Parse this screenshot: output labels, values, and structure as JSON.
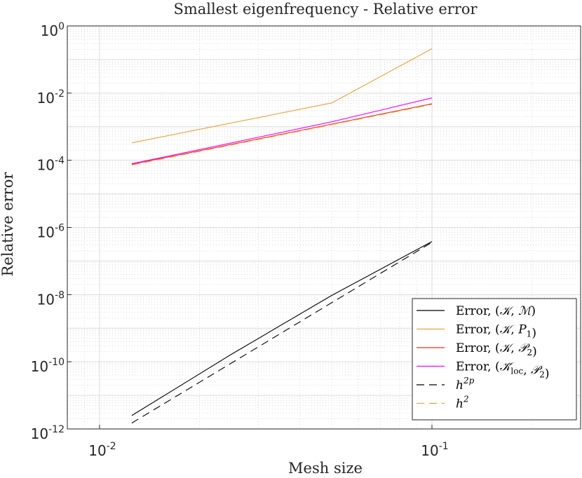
{
  "chart_data": {
    "type": "line",
    "title": "Smallest eigenfrequency - Relative error",
    "xlabel": "Mesh size",
    "ylabel": "Relative error",
    "xscale": "log",
    "yscale": "log",
    "xlim": [
      0.008,
      0.28
    ],
    "ylim": [
      1e-12,
      1
    ],
    "grid": true,
    "minor_grid": true,
    "legend_location": "bottom-right",
    "x_ticks": [
      {
        "value": 0.01,
        "base": "10",
        "exp": "-2"
      },
      {
        "value": 0.1,
        "base": "10",
        "exp": "-1"
      }
    ],
    "y_ticks": [
      {
        "value": 1,
        "base": "10",
        "exp": "0"
      },
      {
        "value": 0.01,
        "base": "10",
        "exp": "-2"
      },
      {
        "value": 0.0001,
        "base": "10",
        "exp": "-4"
      },
      {
        "value": 1e-06,
        "base": "10",
        "exp": "-6"
      },
      {
        "value": 1e-08,
        "base": "10",
        "exp": "-8"
      },
      {
        "value": 1e-10,
        "base": "10",
        "exp": "-10"
      },
      {
        "value": 1e-12,
        "base": "10",
        "exp": "-12"
      }
    ],
    "series": [
      {
        "name": "Error, (K, M)",
        "legend": {
          "prefix": "Error, (",
          "a": "𝒦",
          "a_sub": "",
          "b": "ℳ",
          "b_sub": "",
          "suffix": ")"
        },
        "color": "#000000",
        "dash": "solid",
        "x": [
          0.0125,
          0.025,
          0.05,
          0.1
        ],
        "y": [
          2.5e-12,
          1.7e-10,
          9.5e-09,
          3.8e-07
        ]
      },
      {
        "name": "Error, (K, P1)",
        "legend": {
          "prefix": "Error, (",
          "a": "𝒦",
          "a_sub": "",
          "b": "P",
          "b_sub": "1",
          "suffix": ")"
        },
        "color": "#E8A33D",
        "dash": "solid",
        "x": [
          0.0125,
          0.025,
          0.05,
          0.1
        ],
        "y": [
          0.00033,
          0.0013,
          0.0051,
          0.21
        ]
      },
      {
        "name": "Error, (K, P2)",
        "legend": {
          "prefix": "Error, (",
          "a": "𝒦",
          "a_sub": "",
          "b": "𝒫",
          "b_sub": "2",
          "suffix": ")"
        },
        "color": "#E8321E",
        "dash": "solid",
        "x": [
          0.0125,
          0.025,
          0.05,
          0.1
        ],
        "y": [
          7.6e-05,
          0.0003,
          0.0012,
          0.0048
        ]
      },
      {
        "name": "Error, (K_loc, P2)",
        "legend": {
          "prefix": "Error, (",
          "a": "𝒦̄",
          "a_sub": "loc",
          "b": "𝒫",
          "b_sub": "2",
          "suffix": ")"
        },
        "color": "#FF00FF",
        "dash": "solid",
        "x": [
          0.0125,
          0.025,
          0.05,
          0.1
        ],
        "y": [
          7.9e-05,
          0.00033,
          0.0014,
          0.0072
        ]
      },
      {
        "name": "h^2p",
        "legend": {
          "prefix": "",
          "a": "h",
          "a_sup": "2p",
          "b": "",
          "suffix": ""
        },
        "color": "#000000",
        "dash": "dashed",
        "x": [
          0.0125,
          0.1
        ],
        "y": [
          1.5e-12,
          3.6e-07
        ]
      },
      {
        "name": "h^2",
        "legend": {
          "prefix": "",
          "a": "h",
          "a_sup": "2",
          "b": "",
          "suffix": ""
        },
        "color": "#E8A33D",
        "dash": "dashed",
        "x": [
          0.0125,
          0.1
        ],
        "y": [
          7.2e-05,
          0.0046
        ]
      }
    ]
  }
}
